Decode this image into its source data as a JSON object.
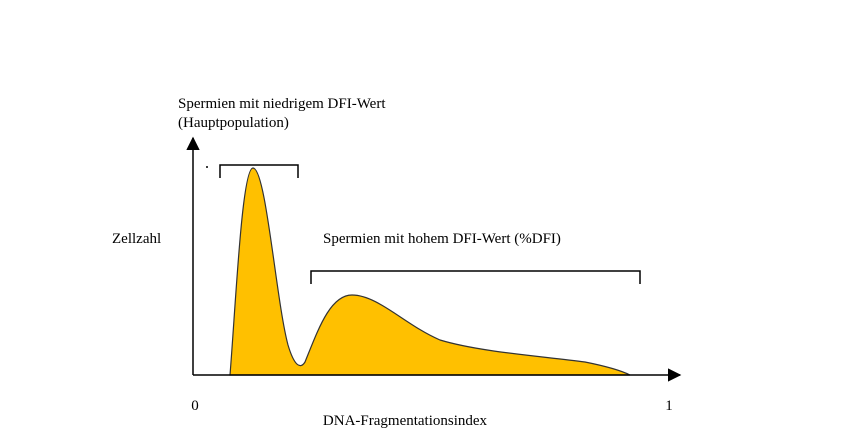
{
  "y_axis": {
    "label": "Zellzahl"
  },
  "x_axis": {
    "label": "DNA-Fragmentationsindex",
    "ticks": [
      "0",
      "1"
    ]
  },
  "annotations": [
    {
      "lines": [
        "Spermien mit niedrigem DFI-Wert",
        "(Hauptpopulation)"
      ]
    },
    {
      "lines": [
        "Spermien mit hohem DFI-Wert (%DFI)"
      ]
    }
  ]
}
